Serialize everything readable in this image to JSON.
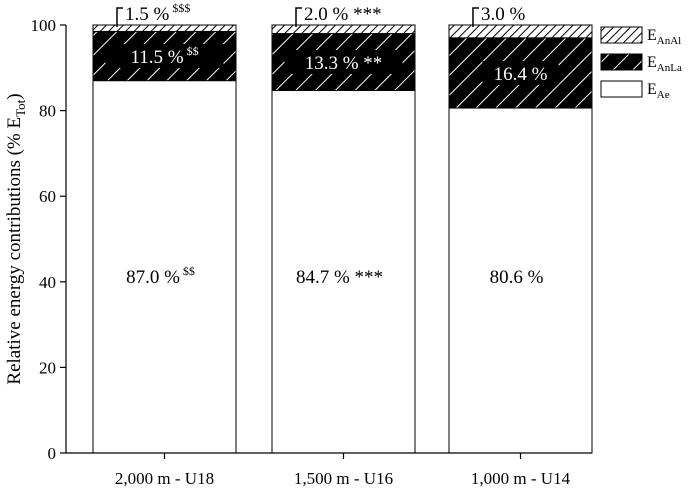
{
  "chart_data": {
    "type": "bar",
    "stacked": true,
    "categories": [
      "2,000 m - U18",
      "1,500 m - U16",
      "1,000 m - U14"
    ],
    "ylabel": "Relative energy contributions (% E",
    "ylabel_sub": "Tot",
    "ylabel_suffix": ")",
    "ylim": [
      0,
      100
    ],
    "yticks": [
      "0",
      "20",
      "40",
      "60",
      "80",
      "100"
    ],
    "grid": false,
    "legend_position": "top-right",
    "series": [
      {
        "name_main": "E",
        "name_sub": "Ae",
        "fill": "white",
        "values": [
          87.0,
          84.7,
          80.6
        ],
        "labels": [
          "87.0 %",
          "84.7 %",
          "80.6 %"
        ],
        "marks": [
          "$$",
          "***",
          ""
        ],
        "mark_style": [
          "sup",
          "inline",
          "inline"
        ]
      },
      {
        "name_main": "E",
        "name_sub": "AnLa",
        "fill": "dense-hatch",
        "values": [
          11.5,
          13.3,
          16.4
        ],
        "labels": [
          "11.5 %",
          "13.3 %",
          "16.4 %"
        ],
        "marks": [
          "$$",
          "**",
          ""
        ],
        "mark_style": [
          "sup",
          "inline",
          "inline"
        ]
      },
      {
        "name_main": "E",
        "name_sub": "AnAl",
        "fill": "sparse-hatch",
        "values": [
          1.5,
          2.0,
          3.0
        ],
        "labels": [
          "1.5 %",
          "2.0 %",
          "3.0 %"
        ],
        "marks": [
          "$$$",
          "***",
          ""
        ],
        "mark_style": [
          "sup",
          "inline",
          "inline"
        ]
      }
    ]
  }
}
